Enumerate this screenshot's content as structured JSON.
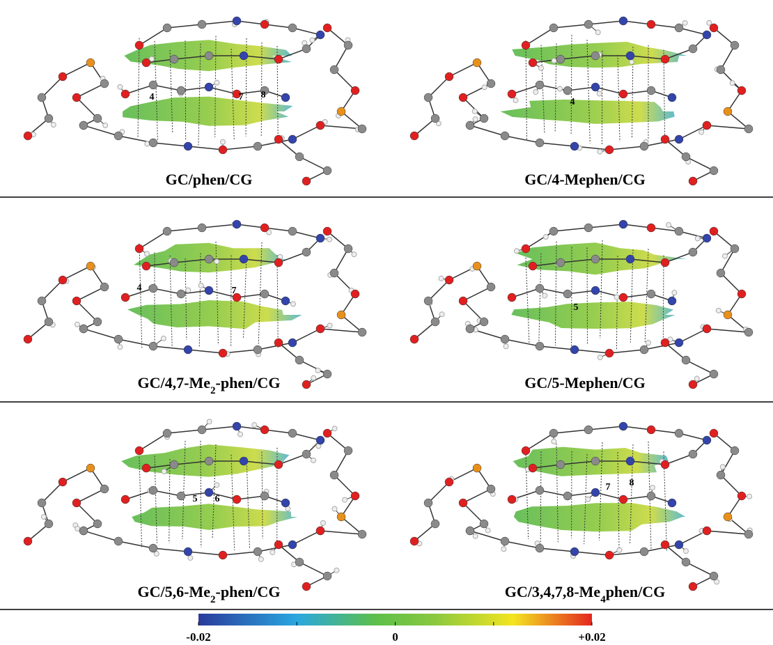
{
  "panels": [
    {
      "caption": [
        "GC/phen/CG"
      ],
      "atom_labels": [
        "4",
        "7",
        "8"
      ]
    },
    {
      "caption": [
        "GC/4-Mephen/CG"
      ],
      "atom_labels": [
        "4"
      ]
    },
    {
      "caption": [
        "GC/4,7-Me",
        "2",
        "-phen/CG"
      ],
      "atom_labels": [
        "4",
        "7"
      ]
    },
    {
      "caption": [
        "GC/5-Mephen/CG"
      ],
      "atom_labels": [
        "5"
      ]
    },
    {
      "caption": [
        "GC/5,6-Me",
        "2",
        "-phen/CG"
      ],
      "atom_labels": [
        "5",
        "6"
      ]
    },
    {
      "caption": [
        "GC/3,4,7,8-Me",
        "4",
        "phen/CG"
      ],
      "atom_labels": [
        "7",
        "8"
      ]
    }
  ],
  "colorbar": {
    "lim": [
      -0.02,
      0.02
    ],
    "ticks": [
      -0.02,
      0,
      {
        "value": 0.02,
        "label": "+0.02"
      }
    ]
  }
}
